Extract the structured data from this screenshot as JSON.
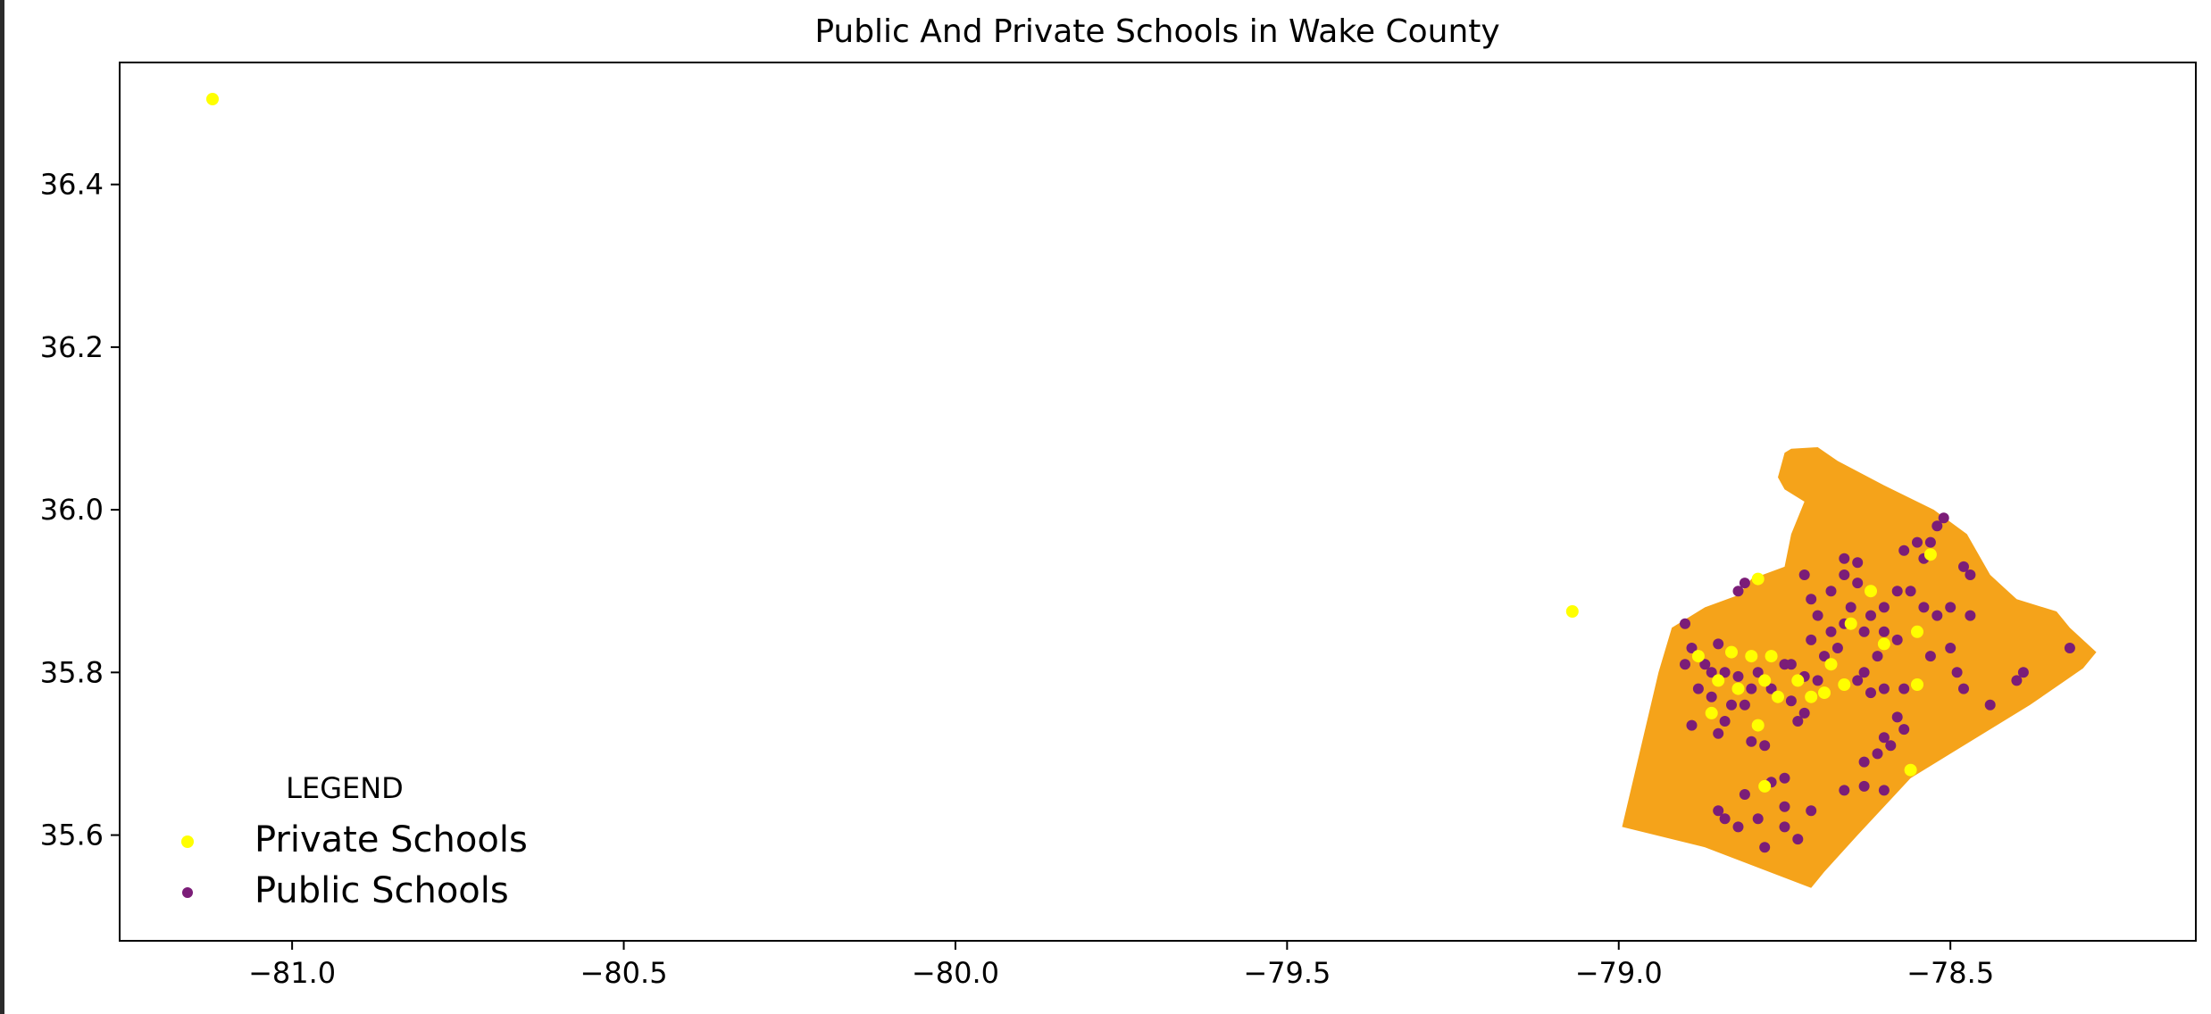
{
  "chart_data": {
    "type": "scatter",
    "title": "Public And Private Schools in Wake County",
    "xlabel": "",
    "ylabel": "",
    "xlim": [
      -81.26,
      -78.13
    ],
    "ylim": [
      35.47,
      36.55
    ],
    "x_ticks": [
      -81.0,
      -80.5,
      -80.0,
      -79.5,
      -79.0,
      -78.5
    ],
    "x_tick_labels": [
      "−81.0",
      "−80.5",
      "−80.0",
      "−79.5",
      "−79.0",
      "−78.5"
    ],
    "y_ticks": [
      35.6,
      35.8,
      36.0,
      36.2,
      36.4
    ],
    "y_tick_labels": [
      "35.6",
      "35.8",
      "36.0",
      "36.2",
      "36.4"
    ],
    "grid": false,
    "legend": {
      "title": "LEGEND",
      "placement": "lower-left",
      "entries": [
        "Private Schools",
        "Public Schools"
      ]
    },
    "county_boundary": {
      "fill": "#f5a31a",
      "polygon": [
        [
          -78.74,
          36.075
        ],
        [
          -78.7,
          36.077
        ],
        [
          -78.67,
          36.06
        ],
        [
          -78.6,
          36.03
        ],
        [
          -78.525,
          36.0
        ],
        [
          -78.475,
          35.97
        ],
        [
          -78.44,
          35.92
        ],
        [
          -78.42,
          35.905
        ],
        [
          -78.4,
          35.89
        ],
        [
          -78.34,
          35.875
        ],
        [
          -78.32,
          35.855
        ],
        [
          -78.28,
          35.825
        ],
        [
          -78.3,
          35.805
        ],
        [
          -78.38,
          35.76
        ],
        [
          -78.5,
          35.7
        ],
        [
          -78.56,
          35.67
        ],
        [
          -78.64,
          35.6
        ],
        [
          -78.69,
          35.555
        ],
        [
          -78.71,
          35.535
        ],
        [
          -78.87,
          35.585
        ],
        [
          -78.995,
          35.61
        ],
        [
          -78.94,
          35.8
        ],
        [
          -78.92,
          35.855
        ],
        [
          -78.87,
          35.88
        ],
        [
          -78.82,
          35.895
        ],
        [
          -78.8,
          35.915
        ],
        [
          -78.75,
          35.93
        ],
        [
          -78.74,
          35.97
        ],
        [
          -78.72,
          36.01
        ],
        [
          -78.75,
          36.025
        ],
        [
          -78.76,
          36.04
        ],
        [
          -78.75,
          36.07
        ]
      ]
    },
    "series": [
      {
        "name": "Private Schools",
        "color": "#ffff00",
        "points": [
          [
            -81.12,
            36.505
          ],
          [
            -79.07,
            35.875
          ],
          [
            -78.79,
            35.915
          ],
          [
            -78.62,
            35.9
          ],
          [
            -78.53,
            35.945
          ],
          [
            -78.55,
            35.85
          ],
          [
            -78.83,
            35.825
          ],
          [
            -78.8,
            35.82
          ],
          [
            -78.77,
            35.82
          ],
          [
            -78.88,
            35.82
          ],
          [
            -78.85,
            35.79
          ],
          [
            -78.82,
            35.78
          ],
          [
            -78.78,
            35.79
          ],
          [
            -78.76,
            35.77
          ],
          [
            -78.73,
            35.79
          ],
          [
            -78.68,
            35.81
          ],
          [
            -78.66,
            35.785
          ],
          [
            -78.71,
            35.77
          ],
          [
            -78.69,
            35.775
          ],
          [
            -78.79,
            35.735
          ],
          [
            -78.86,
            35.75
          ],
          [
            -78.78,
            35.66
          ],
          [
            -78.55,
            35.785
          ],
          [
            -78.56,
            35.68
          ],
          [
            -78.6,
            35.835
          ],
          [
            -78.65,
            35.86
          ]
        ]
      },
      {
        "name": "Public Schools",
        "color": "#7b1d78",
        "points": [
          [
            -78.9,
            35.86
          ],
          [
            -78.89,
            35.83
          ],
          [
            -78.87,
            35.81
          ],
          [
            -78.9,
            35.81
          ],
          [
            -78.85,
            35.835
          ],
          [
            -78.86,
            35.8
          ],
          [
            -78.84,
            35.8
          ],
          [
            -78.88,
            35.78
          ],
          [
            -78.86,
            35.77
          ],
          [
            -78.83,
            35.76
          ],
          [
            -78.84,
            35.74
          ],
          [
            -78.82,
            35.795
          ],
          [
            -78.8,
            35.78
          ],
          [
            -78.81,
            35.76
          ],
          [
            -78.79,
            35.8
          ],
          [
            -78.77,
            35.78
          ],
          [
            -78.75,
            35.81
          ],
          [
            -78.74,
            35.765
          ],
          [
            -78.72,
            35.75
          ],
          [
            -78.73,
            35.74
          ],
          [
            -78.78,
            35.71
          ],
          [
            -78.8,
            35.715
          ],
          [
            -78.85,
            35.725
          ],
          [
            -78.89,
            35.735
          ],
          [
            -78.82,
            35.9
          ],
          [
            -78.81,
            35.91
          ],
          [
            -78.72,
            35.92
          ],
          [
            -78.71,
            35.89
          ],
          [
            -78.7,
            35.87
          ],
          [
            -78.68,
            35.9
          ],
          [
            -78.66,
            35.92
          ],
          [
            -78.64,
            35.91
          ],
          [
            -78.65,
            35.88
          ],
          [
            -78.66,
            35.86
          ],
          [
            -78.63,
            35.85
          ],
          [
            -78.62,
            35.87
          ],
          [
            -78.6,
            35.88
          ],
          [
            -78.58,
            35.9
          ],
          [
            -78.56,
            35.9
          ],
          [
            -78.54,
            35.94
          ],
          [
            -78.53,
            35.96
          ],
          [
            -78.51,
            35.99
          ],
          [
            -78.52,
            35.98
          ],
          [
            -78.48,
            35.93
          ],
          [
            -78.47,
            35.92
          ],
          [
            -78.5,
            35.88
          ],
          [
            -78.52,
            35.87
          ],
          [
            -78.54,
            35.88
          ],
          [
            -78.58,
            35.84
          ],
          [
            -78.61,
            35.82
          ],
          [
            -78.63,
            35.8
          ],
          [
            -78.64,
            35.79
          ],
          [
            -78.67,
            35.83
          ],
          [
            -78.69,
            35.82
          ],
          [
            -78.7,
            35.79
          ],
          [
            -78.72,
            35.795
          ],
          [
            -78.74,
            35.81
          ],
          [
            -78.62,
            35.775
          ],
          [
            -78.6,
            35.78
          ],
          [
            -78.57,
            35.78
          ],
          [
            -78.53,
            35.82
          ],
          [
            -78.5,
            35.83
          ],
          [
            -78.49,
            35.8
          ],
          [
            -78.48,
            35.78
          ],
          [
            -78.58,
            35.745
          ],
          [
            -78.6,
            35.72
          ],
          [
            -78.59,
            35.71
          ],
          [
            -78.61,
            35.7
          ],
          [
            -78.63,
            35.69
          ],
          [
            -78.63,
            35.66
          ],
          [
            -78.6,
            35.655
          ],
          [
            -78.57,
            35.73
          ],
          [
            -78.66,
            35.655
          ],
          [
            -78.75,
            35.635
          ],
          [
            -78.77,
            35.665
          ],
          [
            -78.75,
            35.67
          ],
          [
            -78.79,
            35.62
          ],
          [
            -78.82,
            35.61
          ],
          [
            -78.84,
            35.62
          ],
          [
            -78.75,
            35.61
          ],
          [
            -78.78,
            35.585
          ],
          [
            -78.73,
            35.595
          ],
          [
            -78.71,
            35.63
          ],
          [
            -78.85,
            35.63
          ],
          [
            -78.81,
            35.65
          ],
          [
            -78.66,
            35.94
          ],
          [
            -78.64,
            35.935
          ],
          [
            -78.55,
            35.96
          ],
          [
            -78.57,
            35.95
          ],
          [
            -78.44,
            35.76
          ],
          [
            -78.4,
            35.79
          ],
          [
            -78.39,
            35.8
          ],
          [
            -78.32,
            35.83
          ],
          [
            -78.47,
            35.87
          ],
          [
            -78.6,
            35.85
          ],
          [
            -78.68,
            35.85
          ],
          [
            -78.71,
            35.84
          ]
        ]
      }
    ]
  }
}
